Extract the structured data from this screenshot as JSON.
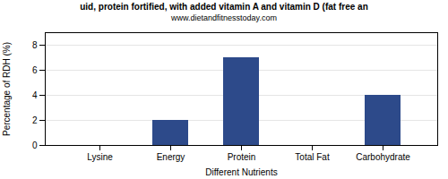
{
  "chart_data": {
    "type": "bar",
    "title": "uid, protein fortified, with added vitamin A and vitamin D (fat free an",
    "subtitle": "www.dietandfitnesstoday.com",
    "xlabel": "Different Nutrients",
    "ylabel": "Percentage of RDH (%)",
    "categories": [
      "Lysine",
      "Energy",
      "Protein",
      "Total Fat",
      "Carbohydrate"
    ],
    "values": [
      0,
      2,
      7,
      0,
      4
    ],
    "color": "#2d4a8a",
    "ylim": [
      0,
      9
    ],
    "yticks": [
      0,
      2,
      4,
      6,
      8
    ],
    "grid": true
  }
}
